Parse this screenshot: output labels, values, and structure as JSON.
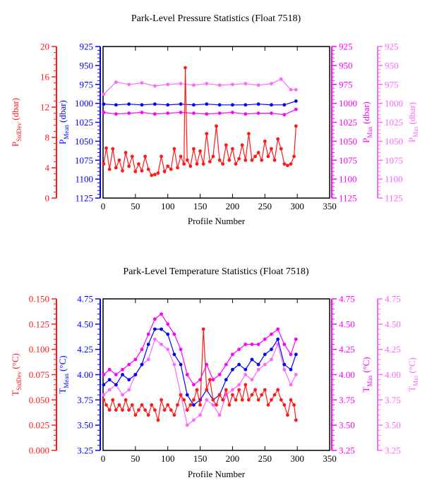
{
  "colors": {
    "stddev": "#ff1a1a",
    "mean": "#0000ff",
    "max": "#ff00ff",
    "min": "#ff66ff",
    "axis": "#000000"
  },
  "chart_data": [
    {
      "type": "line",
      "title": "Park-Level Pressure Statistics (Float 7518)",
      "xlabel": "Profile Number",
      "xlim": [
        0,
        350
      ],
      "xticks": [
        "0",
        "50",
        "100",
        "150",
        "200",
        "250",
        "300",
        "350"
      ],
      "grid": false,
      "axes": [
        {
          "key": "stddev",
          "side": "left-outer",
          "label_main": "P",
          "label_sub": "StdDev",
          "label_unit": " (dbar)",
          "lim": [
            0,
            20
          ],
          "inverted": false,
          "ticks": [
            "0",
            "4",
            "8",
            "12",
            "16",
            "20"
          ]
        },
        {
          "key": "mean",
          "side": "left-inner",
          "label_main": "P",
          "label_sub": "Mean",
          "label_unit": " (dbar)",
          "lim": [
            925,
            1125
          ],
          "inverted": true,
          "ticks": [
            "925",
            "950",
            "975",
            "1000",
            "1025",
            "1050",
            "1075",
            "1100",
            "1125"
          ]
        },
        {
          "key": "max",
          "side": "right-inner",
          "label_main": "P",
          "label_sub": "Max",
          "label_unit": " (dbar)",
          "lim": [
            925,
            1125
          ],
          "inverted": true,
          "ticks": [
            "925",
            "950",
            "975",
            "1000",
            "1025",
            "1050",
            "1075",
            "1100",
            "1125"
          ]
        },
        {
          "key": "min",
          "side": "right-outer",
          "label_main": "P",
          "label_sub": "Min",
          "label_unit": " (dbar)",
          "lim": [
            925,
            1125
          ],
          "inverted": true,
          "ticks": [
            "925",
            "950",
            "975",
            "1000",
            "1025",
            "1050",
            "1075",
            "1100",
            "1125"
          ]
        }
      ],
      "series": [
        {
          "key": "min",
          "x": [
            1,
            20,
            40,
            60,
            80,
            100,
            120,
            140,
            160,
            180,
            200,
            220,
            240,
            260,
            275,
            290,
            298
          ],
          "y": [
            988,
            972,
            975,
            973,
            977,
            975,
            974,
            976,
            974,
            976,
            975,
            974,
            976,
            974,
            968,
            982,
            982
          ]
        },
        {
          "key": "max",
          "x": [
            1,
            20,
            40,
            60,
            80,
            100,
            120,
            140,
            160,
            180,
            200,
            220,
            240,
            260,
            280,
            298
          ],
          "y": [
            1012,
            1014,
            1013,
            1012,
            1014,
            1013,
            1012,
            1013,
            1014,
            1013,
            1012,
            1014,
            1013,
            1013,
            1015,
            1008
          ]
        },
        {
          "key": "mean",
          "x": [
            1,
            20,
            40,
            60,
            80,
            100,
            120,
            140,
            160,
            180,
            200,
            220,
            240,
            260,
            280,
            298
          ],
          "y": [
            1001,
            1002,
            1001,
            1002,
            1001,
            1002,
            1001,
            1002,
            1001,
            1002,
            1002,
            1002,
            1001,
            1002,
            1002,
            997
          ]
        },
        {
          "key": "stddev",
          "x": [
            1,
            5,
            10,
            15,
            20,
            25,
            30,
            35,
            40,
            45,
            50,
            55,
            60,
            65,
            70,
            75,
            80,
            85,
            90,
            95,
            100,
            105,
            110,
            115,
            120,
            125,
            127,
            130,
            135,
            140,
            145,
            150,
            155,
            160,
            165,
            170,
            175,
            180,
            185,
            190,
            195,
            200,
            205,
            210,
            215,
            220,
            225,
            230,
            235,
            240,
            245,
            250,
            255,
            260,
            265,
            270,
            275,
            280,
            285,
            290,
            295,
            298
          ],
          "y": [
            4.5,
            6.6,
            3.8,
            6.5,
            4,
            5,
            3.6,
            6,
            4.2,
            5.5,
            3.5,
            4.5,
            3.6,
            5.5,
            3.8,
            3,
            3.1,
            3.3,
            5.5,
            3.5,
            4.2,
            3.8,
            6.5,
            4,
            5.5,
            4.5,
            17.2,
            5,
            4.2,
            6.5,
            4.5,
            6.2,
            4.5,
            8.5,
            4.8,
            5.5,
            9.5,
            5,
            4.5,
            7,
            5,
            6.5,
            4.5,
            5.2,
            7,
            5,
            8.5,
            5,
            5.5,
            6,
            5,
            7.5,
            5.5,
            6.5,
            5,
            7.8,
            6.5,
            4.5,
            4.3,
            4.5,
            5.5,
            9.5
          ]
        }
      ]
    },
    {
      "type": "line",
      "title": "Park-Level Temperature Statistics (Float 7518)",
      "xlabel": "Profile Number",
      "xlim": [
        0,
        350
      ],
      "xticks": [
        "0",
        "50",
        "100",
        "150",
        "200",
        "250",
        "300",
        "350"
      ],
      "grid": false,
      "axes": [
        {
          "key": "stddev",
          "side": "left-outer",
          "label_main": "T",
          "label_sub": "StdDev",
          "label_unit": " (°C)",
          "lim": [
            0,
            0.15
          ],
          "inverted": false,
          "ticks": [
            "0.000",
            "0.025",
            "0.050",
            "0.075",
            "0.100",
            "0.125",
            "0.150"
          ]
        },
        {
          "key": "mean",
          "side": "left-inner",
          "label_main": "T",
          "label_sub": "Mean",
          "label_unit": " (°C)",
          "lim": [
            3.25,
            4.75
          ],
          "inverted": false,
          "ticks": [
            "3.25",
            "3.50",
            "3.75",
            "4.00",
            "4.25",
            "4.50",
            "4.75"
          ]
        },
        {
          "key": "max",
          "side": "right-inner",
          "label_main": "T",
          "label_sub": "Max",
          "label_unit": " (°C)",
          "lim": [
            3.25,
            4.75
          ],
          "inverted": false,
          "ticks": [
            "3.25",
            "3.50",
            "3.75",
            "4.00",
            "4.25",
            "4.50",
            "4.75"
          ]
        },
        {
          "key": "min",
          "side": "right-outer",
          "label_main": "T",
          "label_sub": "Min",
          "label_unit": " (°C)",
          "lim": [
            3.25,
            4.75
          ],
          "inverted": false,
          "ticks": [
            "3.25",
            "3.50",
            "3.75",
            "4.00",
            "4.25",
            "4.50",
            "4.75"
          ]
        }
      ],
      "series": [
        {
          "key": "min",
          "x": [
            1,
            10,
            20,
            30,
            40,
            50,
            60,
            70,
            80,
            90,
            100,
            110,
            120,
            130,
            140,
            150,
            160,
            170,
            180,
            190,
            200,
            210,
            220,
            230,
            240,
            250,
            260,
            270,
            280,
            290,
            298
          ],
          "y": [
            3.8,
            3.85,
            3.9,
            3.8,
            3.85,
            4.0,
            4.1,
            4.15,
            4.35,
            4.3,
            4.25,
            4.1,
            3.8,
            3.5,
            3.55,
            3.6,
            3.75,
            3.7,
            3.6,
            3.8,
            3.85,
            3.9,
            4.0,
            3.95,
            4.05,
            4.1,
            4.15,
            4.3,
            4.05,
            3.9,
            4.0
          ]
        },
        {
          "key": "mean",
          "x": [
            1,
            10,
            20,
            30,
            40,
            50,
            60,
            70,
            80,
            90,
            100,
            110,
            120,
            130,
            140,
            150,
            160,
            170,
            180,
            190,
            200,
            210,
            220,
            230,
            240,
            250,
            260,
            270,
            280,
            290,
            298
          ],
          "y": [
            3.9,
            3.95,
            3.9,
            4.0,
            3.95,
            4.0,
            4.1,
            4.3,
            4.45,
            4.45,
            4.4,
            4.2,
            4.1,
            3.8,
            3.7,
            3.75,
            3.85,
            3.75,
            3.8,
            3.95,
            4.05,
            4.1,
            4.05,
            4.15,
            4.1,
            4.2,
            4.25,
            4.35,
            4.1,
            4.05,
            4.2
          ]
        },
        {
          "key": "max",
          "x": [
            1,
            10,
            20,
            30,
            40,
            50,
            60,
            70,
            80,
            90,
            100,
            110,
            120,
            130,
            140,
            150,
            160,
            170,
            180,
            190,
            200,
            210,
            220,
            230,
            240,
            250,
            260,
            270,
            280,
            290,
            298
          ],
          "y": [
            4.0,
            4.05,
            4.0,
            4.05,
            4.1,
            4.15,
            4.25,
            4.4,
            4.55,
            4.6,
            4.5,
            4.4,
            4.25,
            4.0,
            3.9,
            3.95,
            4.1,
            3.95,
            4.0,
            4.1,
            4.2,
            4.25,
            4.3,
            4.3,
            4.3,
            4.35,
            4.4,
            4.45,
            4.3,
            4.2,
            4.35
          ]
        },
        {
          "key": "stddev",
          "x": [
            1,
            5,
            10,
            15,
            20,
            25,
            30,
            35,
            40,
            45,
            50,
            55,
            60,
            65,
            70,
            75,
            80,
            85,
            90,
            95,
            100,
            105,
            110,
            115,
            120,
            125,
            130,
            135,
            140,
            145,
            150,
            155,
            160,
            165,
            170,
            175,
            180,
            185,
            190,
            195,
            200,
            205,
            210,
            215,
            220,
            225,
            230,
            235,
            240,
            245,
            250,
            255,
            260,
            265,
            270,
            275,
            280,
            285,
            290,
            295,
            298
          ],
          "y": [
            0.05,
            0.045,
            0.04,
            0.05,
            0.04,
            0.045,
            0.04,
            0.05,
            0.04,
            0.045,
            0.035,
            0.04,
            0.045,
            0.04,
            0.035,
            0.045,
            0.04,
            0.03,
            0.05,
            0.04,
            0.045,
            0.04,
            0.035,
            0.045,
            0.055,
            0.05,
            0.04,
            0.045,
            0.05,
            0.06,
            0.045,
            0.12,
            0.06,
            0.07,
            0.05,
            0.045,
            0.055,
            0.05,
            0.06,
            0.045,
            0.055,
            0.05,
            0.06,
            0.05,
            0.065,
            0.05,
            0.055,
            0.06,
            0.05,
            0.055,
            0.06,
            0.045,
            0.05,
            0.055,
            0.06,
            0.05,
            0.045,
            0.035,
            0.05,
            0.045,
            0.03
          ]
        }
      ]
    }
  ]
}
